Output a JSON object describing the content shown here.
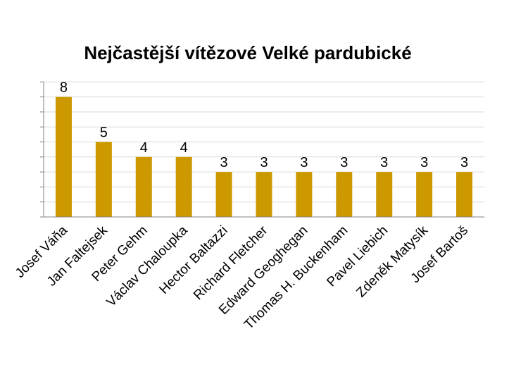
{
  "chart_data": {
    "type": "bar",
    "title": "Nejčastější vítězové Velké pardubické",
    "xlabel": "",
    "ylabel": "",
    "categories": [
      "Josef Váňa",
      "Jan Faltejsek",
      "Peter Gehm",
      "Václav Chaloupka",
      "Hector Baltazzi",
      "Richard Fletcher",
      "Edward Geoghegan",
      "Thomas H. Buckenham",
      "Pavel Liebich",
      "Zdeněk Matysík",
      "Josef Bartoš"
    ],
    "values": [
      8,
      5,
      4,
      4,
      3,
      3,
      3,
      3,
      3,
      3,
      3
    ],
    "data_labels": [
      "8",
      "5",
      "4",
      "4",
      "3",
      "3",
      "3",
      "3",
      "3",
      "3",
      "3"
    ],
    "ylim": [
      0,
      9
    ],
    "grid": true,
    "legend": "none",
    "colors": {
      "bar": "#CC9900",
      "grid": "#D9D9D9",
      "axis": "#808080"
    }
  }
}
